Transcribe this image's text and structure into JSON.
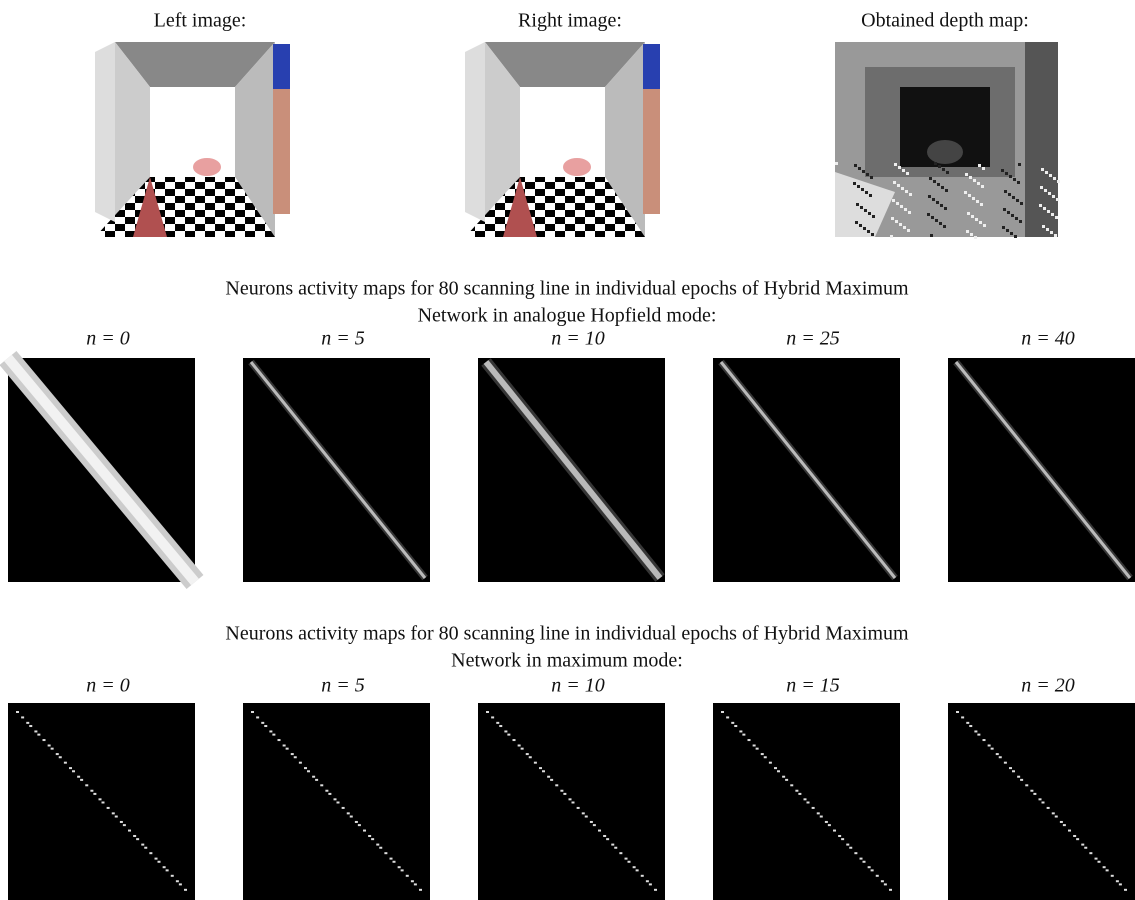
{
  "top_images": [
    {
      "label": "Left image:"
    },
    {
      "label": "Right image:"
    },
    {
      "label": "Obtained depth map:"
    }
  ],
  "sections": [
    {
      "caption_lines": [
        "Neurons activity maps for 80 scanning line in individual epochs of Hybrid Maximum",
        "Network in analogue Hopfield mode:"
      ],
      "panels": [
        {
          "label": "n = 0"
        },
        {
          "label": "n = 5"
        },
        {
          "label": "n = 10"
        },
        {
          "label": "n = 25"
        },
        {
          "label": "n = 40"
        }
      ]
    },
    {
      "caption_lines": [
        "Neurons activity maps for 80 scanning line in individual epochs of Hybrid Maximum",
        "Network in maximum mode:"
      ],
      "panels": [
        {
          "label": "n = 0"
        },
        {
          "label": "n = 5"
        },
        {
          "label": "n = 10"
        },
        {
          "label": "n = 15"
        },
        {
          "label": "n = 20"
        }
      ]
    }
  ]
}
